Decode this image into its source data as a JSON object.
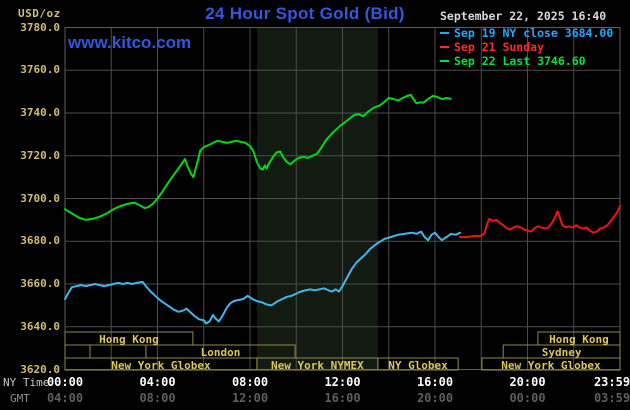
{
  "header": {
    "unit_label": "USD/oz",
    "title": "24 Hour Spot Gold (Bid)",
    "datetime": "September 22, 2025 16:40",
    "watermark": "www.kitco.com"
  },
  "legend": {
    "items": [
      {
        "label": "Sep 19 NY close 3684.00",
        "color": "#1fa8ff"
      },
      {
        "label": "Sep 21 Sunday",
        "color": "#ff2a2a"
      },
      {
        "label": "Sep 22 Last 3746.60",
        "color": "#00e23c"
      }
    ]
  },
  "axes": {
    "ny_caption": "NY Time",
    "gmt_caption": "GMT",
    "y_ticks": [
      {
        "v": 3780,
        "t": "3780.0"
      },
      {
        "v": 3760,
        "t": "3760.0"
      },
      {
        "v": 3740,
        "t": "3740.0"
      },
      {
        "v": 3720,
        "t": "3720.0"
      },
      {
        "v": 3700,
        "t": "3700.0"
      },
      {
        "v": 3680,
        "t": "3680.0"
      },
      {
        "v": 3660,
        "t": "3660.0"
      },
      {
        "v": 3640,
        "t": "3640.0"
      },
      {
        "v": 3620,
        "t": "3620.0"
      }
    ],
    "x_ticks": [
      {
        "h": 0,
        "ny": "00:00",
        "gmt": "04:00"
      },
      {
        "h": 4,
        "ny": "04:00",
        "gmt": "08:00"
      },
      {
        "h": 8,
        "ny": "08:00",
        "gmt": "12:00"
      },
      {
        "h": 12,
        "ny": "12:00",
        "gmt": "16:00"
      },
      {
        "h": 16,
        "ny": "16:00",
        "gmt": "20:00"
      },
      {
        "h": 20,
        "ny": "20:00",
        "gmt": "00:00"
      },
      {
        "h": 24,
        "ny": "23:59",
        "gmt": "03:59"
      }
    ]
  },
  "sessions": [
    {
      "row": 0,
      "start_hour": 0,
      "end_hour": 5.53,
      "label": "Hong Kong"
    },
    {
      "row": 0,
      "start_hour": 20.45,
      "end_hour": 24,
      "label": "Hong Kong"
    },
    {
      "row": 1,
      "start_hour": 0,
      "end_hour": 1.08,
      "label": ""
    },
    {
      "row": 1,
      "start_hour": 1.08,
      "end_hour": 3.5,
      "label": ""
    },
    {
      "row": 1,
      "start_hour": 3.5,
      "end_hour": 9.95,
      "label": "London"
    },
    {
      "row": 1,
      "start_hour": 18.95,
      "end_hour": 24,
      "label": "Sydney"
    },
    {
      "row": 2,
      "start_hour": 0,
      "end_hour": 8.3,
      "label": "New York Globex"
    },
    {
      "row": 2,
      "start_hour": 8.3,
      "end_hour": 13.53,
      "label": "New York NYMEX"
    },
    {
      "row": 2,
      "start_hour": 13.53,
      "end_hour": 17.0,
      "label": "NY Globex"
    },
    {
      "row": 2,
      "start_hour": 18.03,
      "end_hour": 24,
      "label": "New York Globex"
    }
  ],
  "colors": {
    "background": "#000000",
    "grid": "#4d4d4d",
    "plot_border": "#5e5e5e",
    "band": "#121a12",
    "session_border": "#8f8a45",
    "session_label": "#dcc75a",
    "title_blue": "#3457e2",
    "axis_label": "#d4be6e"
  },
  "chart_data": {
    "type": "line",
    "title": "24 Hour Spot Gold (Bid)",
    "xlabel": "NY time (hours, 00:00-23:59)",
    "ylabel": "USD/oz",
    "ylim": [
      3620,
      3780
    ],
    "y_tick_step": 20,
    "x_range_hours": [
      0,
      24
    ],
    "grid": true,
    "legend_position": "top-right",
    "band": {
      "start_hour": 8.3,
      "end_hour": 13.53,
      "note": "NYMEX floor session shading"
    },
    "series": [
      {
        "name": "Sep 19 NY close 3684.00",
        "color": "#3fb8e8",
        "close": 3684.0,
        "points": [
          [
            0,
            3653
          ],
          [
            0.15,
            3656
          ],
          [
            0.3,
            3658.5
          ],
          [
            0.5,
            3659
          ],
          [
            0.7,
            3659.5
          ],
          [
            0.9,
            3659
          ],
          [
            1.1,
            3659.5
          ],
          [
            1.3,
            3660
          ],
          [
            1.5,
            3659.5
          ],
          [
            1.7,
            3659
          ],
          [
            1.9,
            3659.5
          ],
          [
            2.1,
            3660
          ],
          [
            2.3,
            3660.5
          ],
          [
            2.5,
            3660
          ],
          [
            2.7,
            3660.5
          ],
          [
            2.9,
            3660
          ],
          [
            3.1,
            3660.5
          ],
          [
            3.35,
            3661
          ],
          [
            3.5,
            3659
          ],
          [
            3.7,
            3656.5
          ],
          [
            3.9,
            3654.5
          ],
          [
            4.1,
            3652.5
          ],
          [
            4.3,
            3651
          ],
          [
            4.5,
            3649.5
          ],
          [
            4.7,
            3648
          ],
          [
            4.9,
            3647
          ],
          [
            5.1,
            3647.5
          ],
          [
            5.25,
            3648.5
          ],
          [
            5.4,
            3647
          ],
          [
            5.6,
            3645
          ],
          [
            5.8,
            3643.5
          ],
          [
            6.0,
            3643
          ],
          [
            6.1,
            3641.5
          ],
          [
            6.25,
            3642.5
          ],
          [
            6.4,
            3645.5
          ],
          [
            6.5,
            3644
          ],
          [
            6.65,
            3642.5
          ],
          [
            6.8,
            3645
          ],
          [
            7.0,
            3649
          ],
          [
            7.15,
            3651
          ],
          [
            7.3,
            3652
          ],
          [
            7.5,
            3652.5
          ],
          [
            7.7,
            3653
          ],
          [
            7.9,
            3654.5
          ],
          [
            8.1,
            3653
          ],
          [
            8.3,
            3652
          ],
          [
            8.5,
            3651.5
          ],
          [
            8.7,
            3650.5
          ],
          [
            8.9,
            3650
          ],
          [
            9.0,
            3650.5
          ],
          [
            9.2,
            3652
          ],
          [
            9.4,
            3653
          ],
          [
            9.6,
            3654
          ],
          [
            9.8,
            3654.5
          ],
          [
            10.0,
            3655.5
          ],
          [
            10.2,
            3656.5
          ],
          [
            10.4,
            3657
          ],
          [
            10.6,
            3657.5
          ],
          [
            10.8,
            3657
          ],
          [
            11.0,
            3657.5
          ],
          [
            11.2,
            3658
          ],
          [
            11.4,
            3657
          ],
          [
            11.55,
            3656.5
          ],
          [
            11.7,
            3657.5
          ],
          [
            11.85,
            3656.5
          ],
          [
            12.0,
            3659
          ],
          [
            12.2,
            3663
          ],
          [
            12.4,
            3667
          ],
          [
            12.6,
            3670
          ],
          [
            12.8,
            3672
          ],
          [
            13.0,
            3674
          ],
          [
            13.2,
            3676.5
          ],
          [
            13.5,
            3679
          ],
          [
            13.8,
            3681
          ],
          [
            14.1,
            3682
          ],
          [
            14.4,
            3683
          ],
          [
            14.7,
            3683.5
          ],
          [
            15.0,
            3684
          ],
          [
            15.2,
            3683.5
          ],
          [
            15.4,
            3684.5
          ],
          [
            15.55,
            3682
          ],
          [
            15.7,
            3680.5
          ],
          [
            15.85,
            3683
          ],
          [
            16.0,
            3684
          ],
          [
            16.15,
            3682
          ],
          [
            16.3,
            3680.5
          ],
          [
            16.5,
            3682
          ],
          [
            16.7,
            3683.5
          ],
          [
            16.9,
            3683
          ],
          [
            17.08,
            3684
          ]
        ]
      },
      {
        "name": "Sep 21 Sunday",
        "color": "#f01212",
        "points": [
          [
            17.08,
            3682
          ],
          [
            17.4,
            3682
          ],
          [
            17.7,
            3682.5
          ],
          [
            18.0,
            3682.5
          ],
          [
            18.15,
            3684
          ],
          [
            18.25,
            3688
          ],
          [
            18.35,
            3690.5
          ],
          [
            18.5,
            3689.5
          ],
          [
            18.65,
            3690
          ],
          [
            18.8,
            3688.5
          ],
          [
            18.95,
            3687.5
          ],
          [
            19.1,
            3686
          ],
          [
            19.25,
            3685.5
          ],
          [
            19.4,
            3686.5
          ],
          [
            19.55,
            3687
          ],
          [
            19.7,
            3686.5
          ],
          [
            19.85,
            3685.5
          ],
          [
            20.0,
            3685
          ],
          [
            20.15,
            3684.5
          ],
          [
            20.3,
            3686
          ],
          [
            20.45,
            3687
          ],
          [
            20.6,
            3686.5
          ],
          [
            20.75,
            3686
          ],
          [
            20.9,
            3686.5
          ],
          [
            21.05,
            3688.5
          ],
          [
            21.2,
            3691.5
          ],
          [
            21.3,
            3694
          ],
          [
            21.4,
            3691
          ],
          [
            21.5,
            3687.5
          ],
          [
            21.65,
            3686.5
          ],
          [
            21.8,
            3687
          ],
          [
            21.95,
            3686.5
          ],
          [
            22.1,
            3687.5
          ],
          [
            22.25,
            3686.5
          ],
          [
            22.4,
            3686
          ],
          [
            22.55,
            3686.5
          ],
          [
            22.7,
            3685
          ],
          [
            22.85,
            3684
          ],
          [
            23.0,
            3684.5
          ],
          [
            23.15,
            3686
          ],
          [
            23.3,
            3686.5
          ],
          [
            23.45,
            3687.5
          ],
          [
            23.6,
            3689.5
          ],
          [
            23.75,
            3691.5
          ],
          [
            23.9,
            3694
          ],
          [
            24.0,
            3696.5
          ]
        ]
      },
      {
        "name": "Sep 22 Last 3746.60",
        "color": "#00d818",
        "last": 3746.6,
        "points": [
          [
            0,
            3695
          ],
          [
            0.3,
            3693
          ],
          [
            0.6,
            3691
          ],
          [
            0.9,
            3690
          ],
          [
            1.2,
            3690.5
          ],
          [
            1.5,
            3691.5
          ],
          [
            1.8,
            3693
          ],
          [
            2.1,
            3695
          ],
          [
            2.4,
            3696.5
          ],
          [
            2.7,
            3697.5
          ],
          [
            3.0,
            3698
          ],
          [
            3.2,
            3697
          ],
          [
            3.45,
            3695.5
          ],
          [
            3.6,
            3696
          ],
          [
            3.8,
            3697.5
          ],
          [
            4.0,
            3700
          ],
          [
            4.2,
            3703
          ],
          [
            4.5,
            3708
          ],
          [
            4.8,
            3712.5
          ],
          [
            5.0,
            3715.5
          ],
          [
            5.19,
            3718.5
          ],
          [
            5.3,
            3715
          ],
          [
            5.45,
            3711.5
          ],
          [
            5.55,
            3710
          ],
          [
            5.65,
            3714
          ],
          [
            5.75,
            3718
          ],
          [
            5.85,
            3722.5
          ],
          [
            6.0,
            3724
          ],
          [
            6.2,
            3725
          ],
          [
            6.4,
            3726
          ],
          [
            6.6,
            3727
          ],
          [
            6.8,
            3726.5
          ],
          [
            7.0,
            3726
          ],
          [
            7.2,
            3726.5
          ],
          [
            7.4,
            3727
          ],
          [
            7.6,
            3726.5
          ],
          [
            7.8,
            3726
          ],
          [
            8.0,
            3724.5
          ],
          [
            8.15,
            3722
          ],
          [
            8.3,
            3717
          ],
          [
            8.45,
            3714
          ],
          [
            8.55,
            3713.5
          ],
          [
            8.65,
            3715.5
          ],
          [
            8.72,
            3714
          ],
          [
            8.8,
            3716
          ],
          [
            9.0,
            3719.5
          ],
          [
            9.15,
            3721.5
          ],
          [
            9.3,
            3722
          ],
          [
            9.45,
            3719
          ],
          [
            9.6,
            3717
          ],
          [
            9.75,
            3716
          ],
          [
            9.9,
            3717.5
          ],
          [
            10.1,
            3719
          ],
          [
            10.3,
            3719.5
          ],
          [
            10.5,
            3719
          ],
          [
            10.7,
            3720
          ],
          [
            10.9,
            3721
          ],
          [
            11.1,
            3724
          ],
          [
            11.3,
            3727.5
          ],
          [
            11.6,
            3731
          ],
          [
            11.9,
            3734
          ],
          [
            12.2,
            3736.5
          ],
          [
            12.5,
            3739
          ],
          [
            12.7,
            3739.5
          ],
          [
            12.9,
            3738.5
          ],
          [
            13.1,
            3740.5
          ],
          [
            13.35,
            3742.5
          ],
          [
            13.6,
            3743.5
          ],
          [
            13.8,
            3745
          ],
          [
            14.0,
            3747
          ],
          [
            14.2,
            3746.5
          ],
          [
            14.4,
            3745.8
          ],
          [
            14.6,
            3747
          ],
          [
            14.8,
            3748
          ],
          [
            14.95,
            3748.5
          ],
          [
            15.1,
            3746
          ],
          [
            15.2,
            3744.5
          ],
          [
            15.35,
            3745
          ],
          [
            15.5,
            3744.8
          ],
          [
            15.7,
            3746.5
          ],
          [
            15.9,
            3748
          ],
          [
            16.1,
            3747.5
          ],
          [
            16.3,
            3746.5
          ],
          [
            16.5,
            3747
          ],
          [
            16.67,
            3746.6
          ]
        ]
      }
    ]
  }
}
